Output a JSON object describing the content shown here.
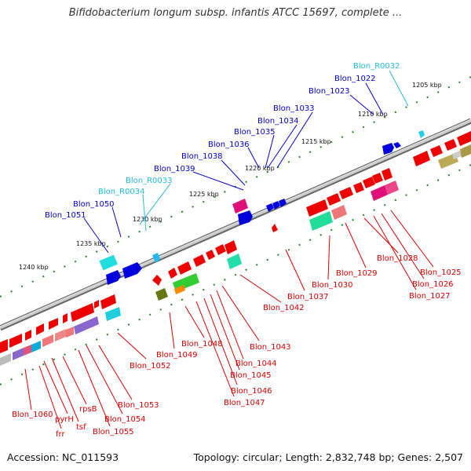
{
  "title": "Bifidobacterium longum subsp. infantis ATCC 15697, complete ...",
  "accession_text": "Accession: NC_011593",
  "summary_text": "Topology: circular; Length: 2,832,748 bp; Genes: 2,507",
  "colors": {
    "forward_label": "#0000cc",
    "rna_label": "#22bbdd",
    "reverse_label": "#dd0000",
    "backbone": "#888888",
    "tick": "#228822"
  },
  "kbp_ticks": [
    "1205 kbp",
    "1210 kbp",
    "1215 kbp",
    "1220 kbp",
    "1225 kbp",
    "1230 kbp",
    "1235 kbp",
    "1240 kbp"
  ],
  "forward_labels": [
    {
      "text": "Blon_R0032",
      "kind": "rna"
    },
    {
      "text": "Blon_1022",
      "kind": "gene"
    },
    {
      "text": "Blon_1023",
      "kind": "gene"
    },
    {
      "text": "Blon_1033",
      "kind": "gene"
    },
    {
      "text": "Blon_1034",
      "kind": "gene"
    },
    {
      "text": "Blon_1035",
      "kind": "gene"
    },
    {
      "text": "Blon_1036",
      "kind": "gene"
    },
    {
      "text": "Blon_1038",
      "kind": "gene"
    },
    {
      "text": "Blon_1039",
      "kind": "gene"
    },
    {
      "text": "Blon_R0033",
      "kind": "rna"
    },
    {
      "text": "Blon_R0034",
      "kind": "rna"
    },
    {
      "text": "Blon_1050",
      "kind": "gene"
    },
    {
      "text": "Blon_1051",
      "kind": "gene"
    }
  ],
  "reverse_labels": [
    "Blon_1025",
    "Blon_1026",
    "Blon_1027",
    "Blon_1028",
    "Blon_1029",
    "Blon_1030",
    "Blon_1037",
    "Blon_1042",
    "Blon_1043",
    "Blon_1044",
    "Blon_1045",
    "Blon_1046",
    "Blon_1047",
    "Blon_1048",
    "Blon_1049",
    "Blon_1052",
    "Blon_1053",
    "Blon_1054",
    "Blon_1055",
    "rpsB",
    "tsf",
    "pyrH",
    "frr",
    "Blon_1060"
  ]
}
